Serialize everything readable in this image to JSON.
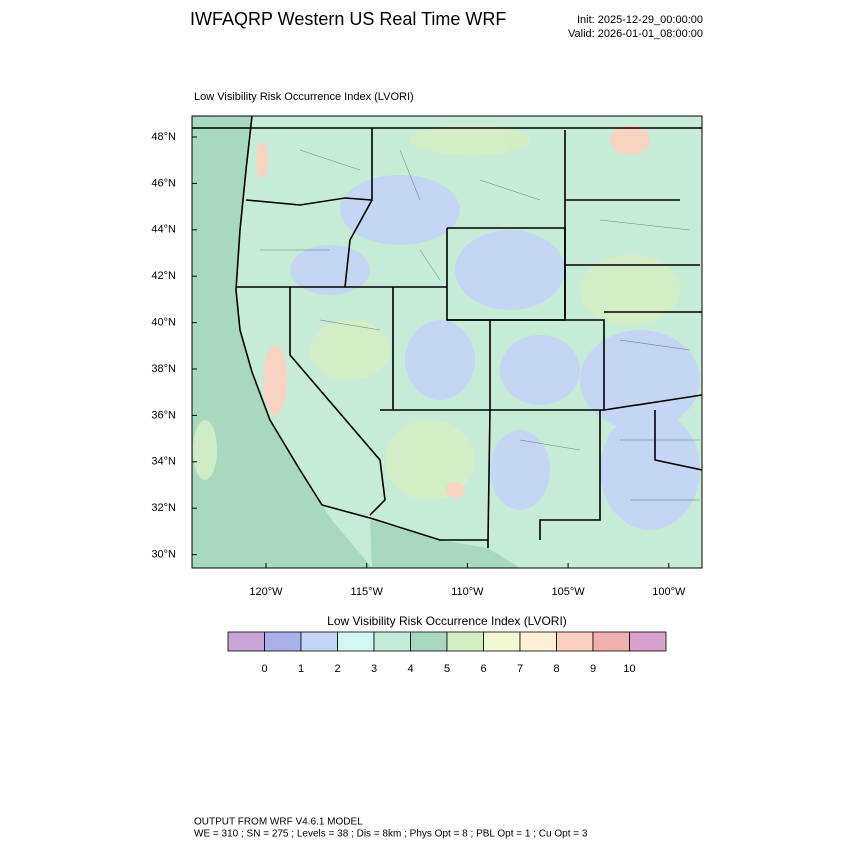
{
  "header": {
    "title": "IWFAQRP Western US Real Time WRF",
    "init": "Init: 2025-12-29_00:00:00",
    "valid": "Valid: 2026-01-01_08:00:00"
  },
  "map": {
    "subtitle": "Low Visibility Risk Occurrence Index   (LVORI)",
    "lat_labels": [
      "48°N",
      "46°N",
      "44°N",
      "42°N",
      "40°N",
      "38°N",
      "36°N",
      "34°N",
      "32°N",
      "30°N"
    ],
    "lon_labels": [
      "120°W",
      "115°W",
      "110°W",
      "105°W",
      "100°W"
    ]
  },
  "colorbar": {
    "title": "Low Visibility Risk Occurrence Index  (LVORI)",
    "labels": [
      "0",
      "1",
      "2",
      "3",
      "4",
      "5",
      "6",
      "7",
      "8",
      "9",
      "10"
    ],
    "colors": [
      "#c8a4d8",
      "#aab0ea",
      "#c4d4f6",
      "#d2f6f0",
      "#c2ecd8",
      "#a8d8c0",
      "#d4eec4",
      "#f2f8d2",
      "#fef0d4",
      "#fcd0c0",
      "#f0b0b0",
      "#d8a0cc"
    ]
  },
  "footer": {
    "line1": "OUTPUT FROM WRF V4.6.1 MODEL",
    "line2": "WE = 310 ; SN = 275 ; Levels = 38 ; Dis = 8km ; Phys Opt = 8 ; PBL Opt = 1 ; Cu Opt = 3"
  }
}
